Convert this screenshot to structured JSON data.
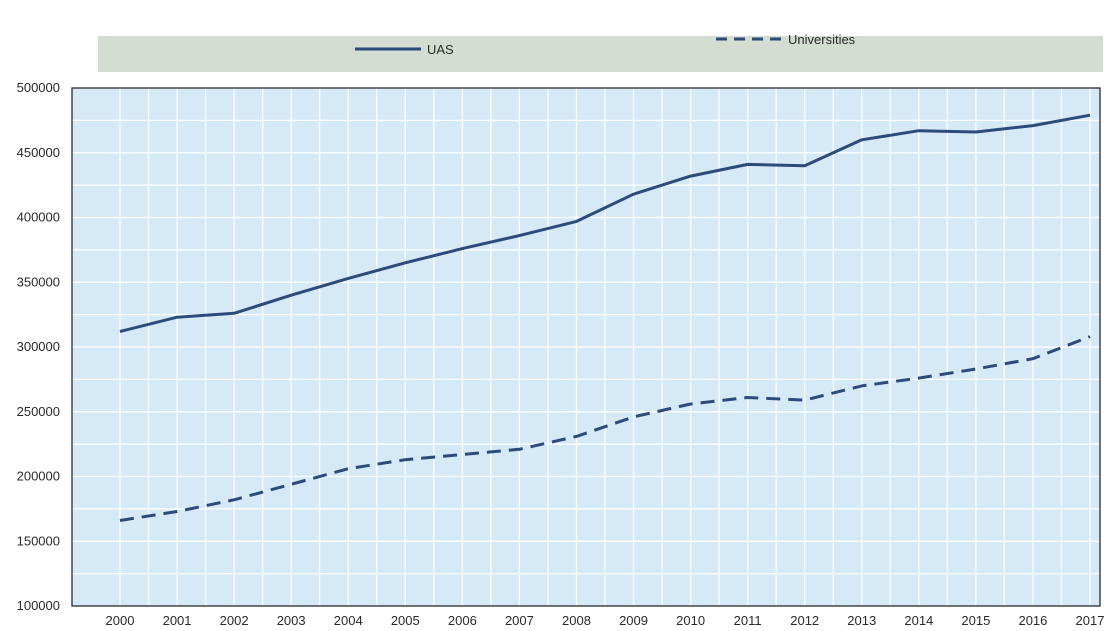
{
  "chart_data": {
    "type": "line",
    "title": "",
    "xlabel": "",
    "ylabel": "",
    "x": [
      "2000",
      "2001",
      "2002",
      "2003",
      "2004",
      "2005",
      "2006",
      "2007",
      "2008",
      "2009",
      "2010",
      "2011",
      "2012",
      "2013",
      "2014",
      "2015",
      "2016",
      "2017"
    ],
    "ylim": [
      100000,
      500000
    ],
    "yticks": [
      "500000",
      "450000",
      "400000",
      "350000",
      "300000",
      "250000",
      "200000",
      "150000",
      "100000"
    ],
    "grid": true,
    "legend_position": "top-center",
    "series": [
      {
        "name": "UAS",
        "style": "solid",
        "color": "#2d4b7a",
        "values": [
          312000,
          323000,
          326000,
          340000,
          353000,
          365000,
          376000,
          386000,
          397000,
          418000,
          432000,
          441000,
          440000,
          460000,
          467000,
          466000,
          471000,
          479000
        ]
      },
      {
        "name": "Universities",
        "style": "dashed",
        "color": "#2d4b7a",
        "values": [
          166000,
          173000,
          182000,
          194000,
          206000,
          213000,
          217000,
          221000,
          231000,
          246000,
          256000,
          261000,
          259000,
          270000,
          276000,
          283000,
          291000,
          308000
        ]
      }
    ]
  },
  "colors": {
    "plot_background": "#d6e9f6",
    "gridline": "#ffffff",
    "legend_band": "#d4ddd2",
    "axis": "#2a2a2a"
  }
}
